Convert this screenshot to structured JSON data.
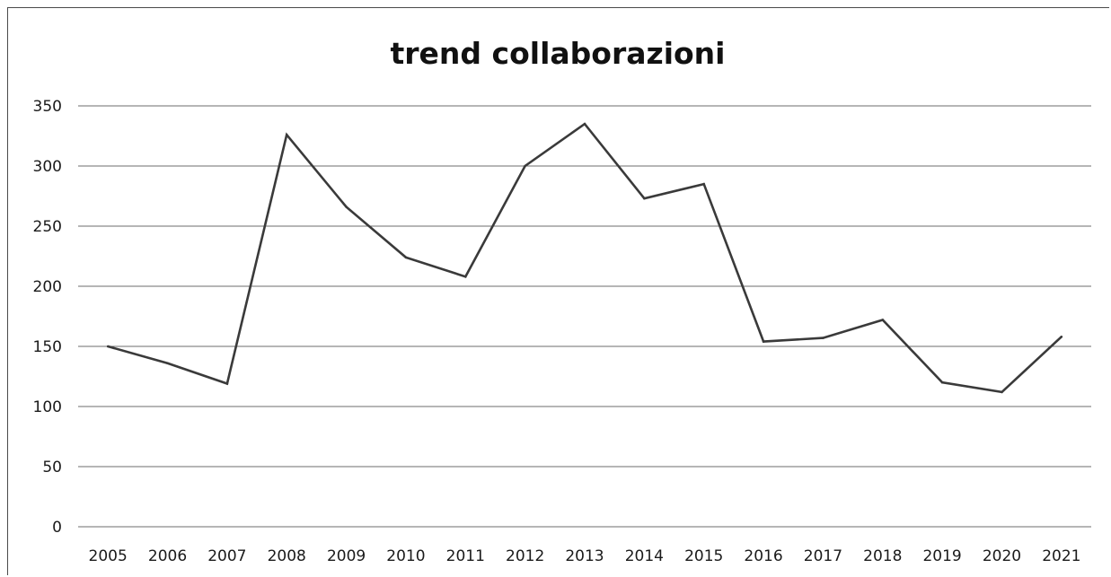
{
  "chart_data": {
    "type": "line",
    "title": "trend collaborazioni",
    "xlabel": "",
    "ylabel": "",
    "categories": [
      "2005",
      "2006",
      "2007",
      "2008",
      "2009",
      "2010",
      "2011",
      "2012",
      "2013",
      "2014",
      "2015",
      "2016",
      "2017",
      "2018",
      "2019",
      "2020",
      "2021"
    ],
    "series": [
      {
        "values": [
          150,
          136,
          119,
          326,
          266,
          224,
          208,
          300,
          335,
          273,
          285,
          154,
          157,
          172,
          120,
          112,
          158
        ]
      }
    ],
    "ylim": [
      0,
      350
    ],
    "yticks": [
      "0",
      "50",
      "100",
      "150",
      "200",
      "250",
      "300",
      "350"
    ],
    "grid": true,
    "legend": "none",
    "colors": {
      "line": "#3a3a3a",
      "grid": "#6e6e6e"
    }
  }
}
